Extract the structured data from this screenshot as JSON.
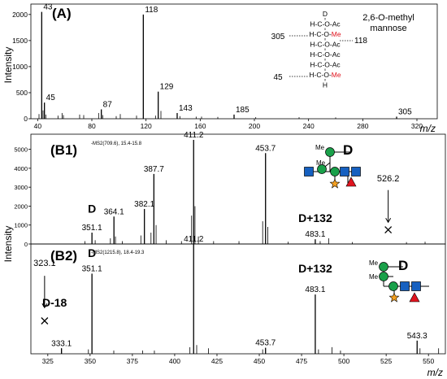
{
  "chart_data": [
    {
      "type": "bar",
      "panel_label": "(A)",
      "ylabel": "Intensity",
      "xlabel": "m/z",
      "xlim": [
        35,
        335
      ],
      "ylim": [
        0,
        2200
      ],
      "x_ticks": [
        40,
        80,
        120,
        160,
        200,
        240,
        280,
        320
      ],
      "y_ticks": [
        0,
        500,
        1000,
        1500,
        2000
      ],
      "peaks": [
        {
          "x": 43,
          "y": 2050,
          "label": "43"
        },
        {
          "x": 45,
          "y": 310,
          "label": "45"
        },
        {
          "x": 87,
          "y": 180,
          "label": "87"
        },
        {
          "x": 118,
          "y": 2000,
          "label": "118"
        },
        {
          "x": 129,
          "y": 520,
          "label": "129"
        },
        {
          "x": 143,
          "y": 110,
          "label": "143"
        },
        {
          "x": 185,
          "y": 80,
          "label": "185"
        },
        {
          "x": 305,
          "y": 40,
          "label": "305"
        }
      ],
      "minor_peaks": [
        {
          "x": 41,
          "y": 90
        },
        {
          "x": 44,
          "y": 160
        },
        {
          "x": 46,
          "y": 80
        },
        {
          "x": 55,
          "y": 60
        },
        {
          "x": 58,
          "y": 110
        },
        {
          "x": 59,
          "y": 70
        },
        {
          "x": 71,
          "y": 80
        },
        {
          "x": 74,
          "y": 70
        },
        {
          "x": 85,
          "y": 110
        },
        {
          "x": 88,
          "y": 70
        },
        {
          "x": 98,
          "y": 50
        },
        {
          "x": 101,
          "y": 90
        },
        {
          "x": 113,
          "y": 60
        },
        {
          "x": 127,
          "y": 60
        },
        {
          "x": 131,
          "y": 150
        },
        {
          "x": 145,
          "y": 50
        },
        {
          "x": 157,
          "y": 40
        },
        {
          "x": 161,
          "y": 40
        },
        {
          "x": 173,
          "y": 35
        },
        {
          "x": 201,
          "y": 30
        },
        {
          "x": 233,
          "y": 30
        },
        {
          "x": 260,
          "y": 25
        }
      ],
      "structure": {
        "title": [
          "2,6-O-methyl",
          "mannose"
        ],
        "rows": [
          {
            "left": "",
            "text": "D",
            "suffix": "",
            "right": ""
          },
          {
            "left": "",
            "text": "H-C-O-Ac",
            "suffix": "",
            "right": ""
          },
          {
            "left": "305",
            "text": "H-C-O-",
            "suffix": "Me",
            "right": "118"
          },
          {
            "left": "",
            "text": "H-C-O-Ac",
            "suffix": "",
            "right": ""
          },
          {
            "left": "",
            "text": "H-C-O-Ac",
            "suffix": "",
            "right": ""
          },
          {
            "left": "",
            "text": "H-C-O-Ac",
            "suffix": "",
            "right": ""
          },
          {
            "left": "45",
            "text": "H-C-O-",
            "suffix": "Me",
            "right": ""
          },
          {
            "left": "",
            "text": "H",
            "suffix": "",
            "right": ""
          }
        ]
      }
    },
    {
      "type": "bar",
      "panel_label": "(B1)",
      "scan_header": "-MS2(709.6), 15.4-15.8",
      "xlim": [
        315,
        560
      ],
      "ylim": [
        0,
        5800
      ],
      "y_ticks": [
        0,
        1000,
        2000,
        3000,
        4000,
        5000
      ],
      "peaks": [
        {
          "x": 351.1,
          "y": 600,
          "label": "351.1"
        },
        {
          "x": 364.1,
          "y": 1450,
          "label": "364.1"
        },
        {
          "x": 382.1,
          "y": 1850,
          "label": "382.1"
        },
        {
          "x": 387.7,
          "y": 3700,
          "label": "387.7"
        },
        {
          "x": 411.2,
          "y": 5500,
          "label": "411.2"
        },
        {
          "x": 453.7,
          "y": 4800,
          "label": "453.7"
        },
        {
          "x": 483.1,
          "y": 250,
          "label": "483.1"
        }
      ],
      "minor_peaks": [
        {
          "x": 347,
          "y": 150
        },
        {
          "x": 353,
          "y": 200
        },
        {
          "x": 362,
          "y": 300
        },
        {
          "x": 365,
          "y": 400
        },
        {
          "x": 369,
          "y": 150
        },
        {
          "x": 380,
          "y": 450
        },
        {
          "x": 386,
          "y": 600
        },
        {
          "x": 389,
          "y": 1000
        },
        {
          "x": 395,
          "y": 200
        },
        {
          "x": 404,
          "y": 150
        },
        {
          "x": 410,
          "y": 1500
        },
        {
          "x": 412,
          "y": 2000
        },
        {
          "x": 414,
          "y": 400
        },
        {
          "x": 423,
          "y": 150
        },
        {
          "x": 438,
          "y": 150
        },
        {
          "x": 452,
          "y": 1200
        },
        {
          "x": 455,
          "y": 900
        },
        {
          "x": 467,
          "y": 120
        },
        {
          "x": 486,
          "y": 150
        },
        {
          "x": 491,
          "y": 300
        },
        {
          "x": 505,
          "y": 100
        },
        {
          "x": 537,
          "y": 100
        },
        {
          "x": 548,
          "y": 120
        }
      ],
      "annotations": [
        {
          "text": "D",
          "x": 351.1,
          "y": 1650,
          "bold": true,
          "size": 14
        },
        {
          "text": "D+132",
          "x": 483.1,
          "y": 1150,
          "bold": true,
          "size": 14
        },
        {
          "text": "526.2",
          "x": 526.2,
          "y": 3300,
          "bold": false,
          "size": 11
        }
      ],
      "absent_markers": [
        {
          "x": 526.2,
          "y": 750
        }
      ],
      "arrows": [
        {
          "x": 526.2,
          "y_from": 2850,
          "y_to": 1150
        }
      ]
    },
    {
      "type": "bar",
      "panel_label": "(B2)",
      "scan_header": "-MS2(1215.8), 18.4-19.3",
      "xlabel": "m/z",
      "xlim": [
        315,
        560
      ],
      "ylim": [
        0,
        1000
      ],
      "x_ticks": [
        325,
        350,
        375,
        400,
        425,
        450,
        475,
        500,
        525,
        550
      ],
      "peaks": [
        {
          "x": 333.1,
          "y": 50,
          "label": "333.1"
        },
        {
          "x": 351.1,
          "y": 730,
          "label": "351.1"
        },
        {
          "x": 411.2,
          "y": 1000,
          "label": "411.2"
        },
        {
          "x": 453.7,
          "y": 55,
          "label": "453.7"
        },
        {
          "x": 483.1,
          "y": 540,
          "label": "483.1"
        },
        {
          "x": 543.3,
          "y": 120,
          "label": "543.3"
        }
      ],
      "minor_peaks": [
        {
          "x": 333,
          "y": 50
        },
        {
          "x": 349,
          "y": 40
        },
        {
          "x": 364,
          "y": 30
        },
        {
          "x": 381,
          "y": 30
        },
        {
          "x": 388,
          "y": 30
        },
        {
          "x": 409,
          "y": 60
        },
        {
          "x": 413,
          "y": 80
        },
        {
          "x": 420,
          "y": 50
        },
        {
          "x": 452,
          "y": 40
        },
        {
          "x": 485,
          "y": 40
        },
        {
          "x": 493,
          "y": 60
        },
        {
          "x": 498,
          "y": 30
        },
        {
          "x": 545,
          "y": 50
        },
        {
          "x": 556,
          "y": 50
        }
      ],
      "annotations": [
        {
          "text": "323.1",
          "x": 323.1,
          "y": 800,
          "bold": false,
          "size": 11
        },
        {
          "text": "D-18",
          "x": 329,
          "y": 430,
          "bold": true,
          "size": 14
        },
        {
          "text": "D",
          "x": 351.1,
          "y": 880,
          "bold": true,
          "size": 14
        },
        {
          "text": "D+132",
          "x": 483.1,
          "y": 740,
          "bold": true,
          "size": 14
        }
      ],
      "absent_markers": [
        {
          "x": 323.1,
          "y": 300
        }
      ],
      "arrows": [
        {
          "x": 323.1,
          "y_from": 710,
          "y_to": 420
        }
      ]
    }
  ],
  "shared_ylabel": "Intensity",
  "glycan_diagrams": [
    {
      "label": "D",
      "methyl_text": [
        "Me",
        "Me"
      ]
    },
    {
      "label": "D",
      "methyl_text": [
        "Me",
        "Me"
      ]
    }
  ],
  "colors": {
    "axis": "#000000",
    "methyl_red": "#e0141e",
    "mannose_green": "#1aa04a",
    "glcnac_blue": "#1660c0",
    "fucose_red": "#e0141e",
    "xylose_orange": "#f4a020"
  }
}
